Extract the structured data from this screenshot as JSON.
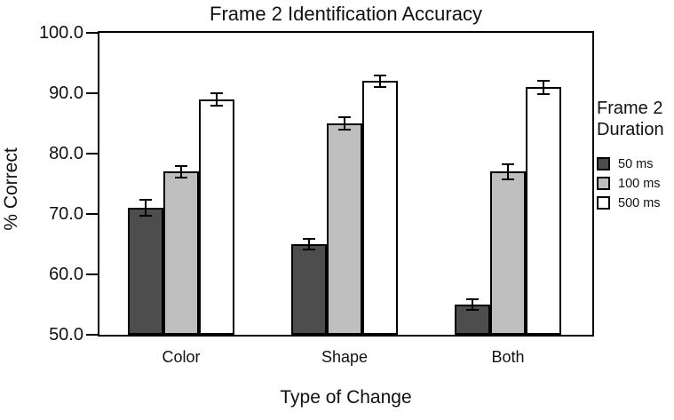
{
  "chart_data": {
    "type": "bar",
    "title": "Frame 2 Identification Accuracy",
    "xlabel": "Type of Change",
    "ylabel": "% Correct",
    "categories": [
      "Color",
      "Shape",
      "Both"
    ],
    "series": [
      {
        "name": "50 ms",
        "color": "#4d4d4d",
        "values": [
          71,
          65,
          55
        ],
        "errors": [
          1.3,
          0.9,
          0.9
        ]
      },
      {
        "name": "100 ms",
        "color": "#bfbfbf",
        "values": [
          77,
          85,
          77
        ],
        "errors": [
          1.0,
          1.1,
          1.2
        ]
      },
      {
        "name": "500 ms",
        "color": "#ffffff",
        "values": [
          89,
          92,
          91
        ],
        "errors": [
          1.0,
          0.9,
          1.1
        ]
      }
    ],
    "ylim": [
      50,
      100
    ],
    "yticks": [
      100,
      90,
      80,
      70,
      60,
      50
    ],
    "ytick_labels": [
      "100.0",
      "90.0",
      "80.0",
      "70.0",
      "60.0",
      "50.0"
    ],
    "grid": false,
    "error_bars": true,
    "axis_color": "#000000",
    "background_color": "#ffffff",
    "legend": {
      "position": "right",
      "title_lines": [
        "Frame 2",
        "Duration"
      ]
    }
  }
}
